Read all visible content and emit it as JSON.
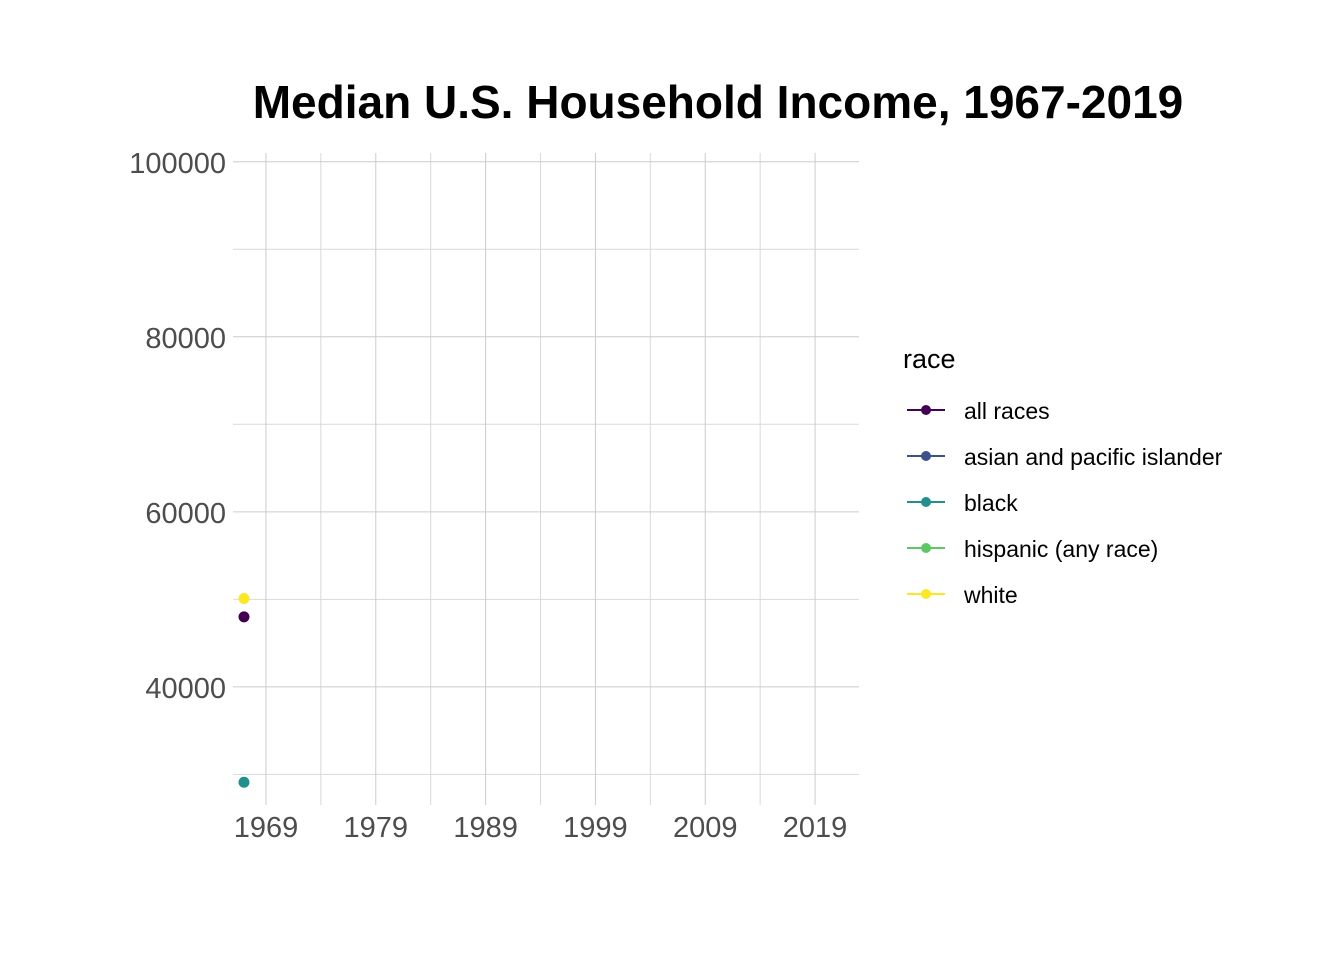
{
  "chart_data": {
    "type": "line",
    "title": "Median U.S. Household Income, 1967-2019",
    "xlabel": "",
    "ylabel": "",
    "xlim": [
      1966,
      2023
    ],
    "ylim": [
      26500,
      101000
    ],
    "x_ticks": [
      1969,
      1979,
      1989,
      1999,
      2009,
      2019
    ],
    "x_minor_ticks": [
      1974,
      1984,
      1994,
      2004,
      2014
    ],
    "y_ticks": [
      40000,
      60000,
      80000,
      100000
    ],
    "y_minor_ticks": [
      30000,
      50000,
      70000,
      90000
    ],
    "grid": true,
    "legend": {
      "title": "race",
      "position": "right",
      "entries": [
        "all races",
        "asian and pacific islander",
        "black",
        "hispanic (any race)",
        "white"
      ]
    },
    "series": [
      {
        "name": "all races",
        "color": "#440154",
        "points": [
          {
            "x": 1967,
            "y": 48000
          }
        ]
      },
      {
        "name": "asian and pacific islander",
        "color": "#3b528b",
        "points": []
      },
      {
        "name": "black",
        "color": "#21908c",
        "points": [
          {
            "x": 1967,
            "y": 29100
          }
        ]
      },
      {
        "name": "hispanic (any race)",
        "color": "#5dc863",
        "points": []
      },
      {
        "name": "white",
        "color": "#fde725",
        "points": [
          {
            "x": 1967,
            "y": 50100
          }
        ]
      }
    ]
  }
}
